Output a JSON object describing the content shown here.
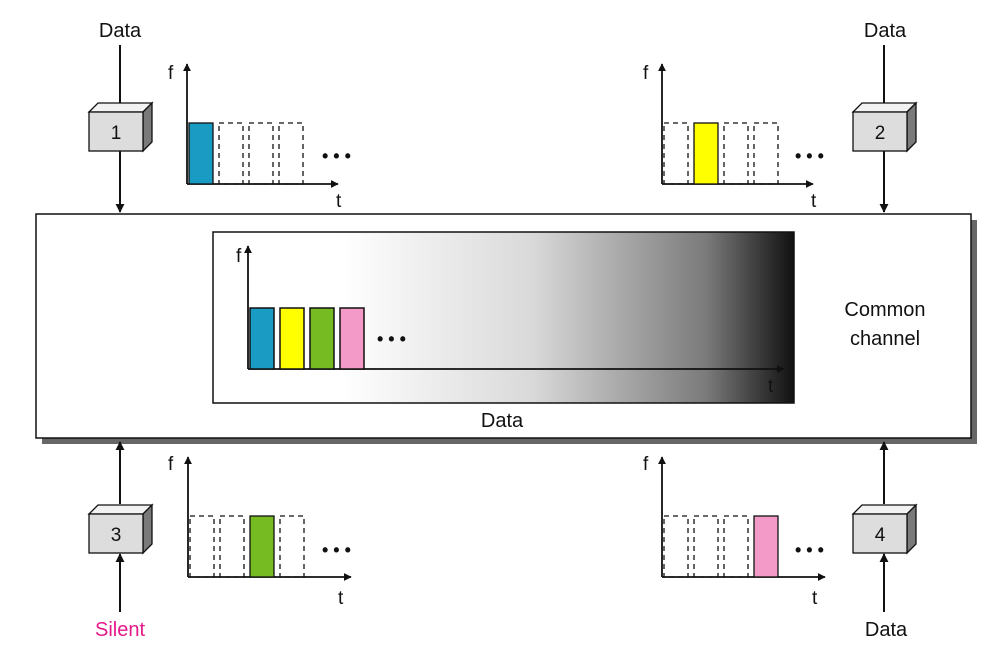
{
  "stations": [
    {
      "id": "1",
      "label": "1",
      "io_label": "Data",
      "active_slot": 0
    },
    {
      "id": "2",
      "label": "2",
      "io_label": "Data",
      "active_slot": 1
    },
    {
      "id": "3",
      "label": "3",
      "io_label": "Silent",
      "active_slot": 2
    },
    {
      "id": "4",
      "label": "4",
      "io_label": "Data",
      "active_slot": 3
    }
  ],
  "slot_colors": [
    "#1a9bc4",
    "#ffff00",
    "#77bb22",
    "#f49ac9"
  ],
  "silent_color": "#e6198a",
  "axis": {
    "f_label": "f",
    "t_label": "t",
    "ellipsis": "• • •"
  },
  "channel": {
    "label_line1": "Common",
    "label_line2": "channel",
    "data_label": "Data"
  }
}
